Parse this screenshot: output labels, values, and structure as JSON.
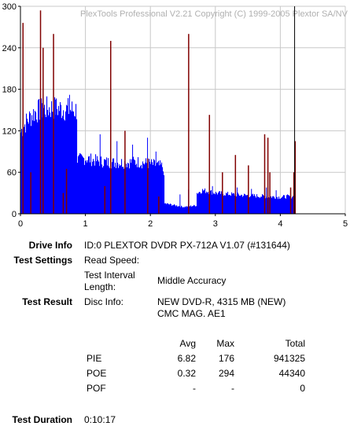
{
  "chart_data": {
    "type": "bar",
    "watermark": "PlexTools Professional V2.21 Copyright (C) 1999-2005 Plextor SA/NV",
    "xlim": [
      0,
      5
    ],
    "ylim": [
      0,
      300
    ],
    "xticks": [
      "0",
      "1",
      "2",
      "3",
      "4",
      "5"
    ],
    "yticks": [
      "0",
      "60",
      "120",
      "180",
      "240",
      "300"
    ],
    "grid": true,
    "series": [
      {
        "kind": "PIE",
        "color": "#0000ff",
        "profile_x": [
          0.0,
          0.02,
          0.1,
          0.2,
          0.3,
          0.4,
          0.5,
          0.6,
          0.7,
          0.8,
          0.86,
          0.87,
          1.0,
          1.2,
          1.4,
          1.6,
          1.8,
          2.0,
          2.1,
          2.2,
          2.21,
          2.5,
          2.7,
          2.71,
          2.8,
          3.0,
          3.4,
          3.8,
          4.0,
          4.1,
          4.2
        ],
        "profile_y": [
          118,
          123,
          135,
          146,
          150,
          152,
          153,
          152,
          151,
          150,
          150,
          78,
          80,
          76,
          74,
          74,
          75,
          72,
          70,
          68,
          15,
          10,
          12,
          30,
          34,
          30,
          27,
          25,
          24,
          25,
          25
        ],
        "spikes_x": [
          0.33,
          0.53,
          0.75,
          1.22,
          1.48,
          1.72,
          1.95,
          2.08,
          2.45,
          2.58,
          2.95,
          3.33,
          3.55,
          3.78,
          3.93
        ],
        "spikes_y": [
          160,
          165,
          172,
          115,
          105,
          100,
          110,
          90,
          28,
          35,
          40,
          38,
          36,
          38,
          34
        ]
      },
      {
        "kind": "POE",
        "color": "#800000",
        "x": [
          0.03,
          0.15,
          0.3,
          0.34,
          0.5,
          0.65,
          0.7,
          1.29,
          1.38,
          1.6,
          1.95,
          2.12,
          2.58,
          2.9,
          3.1,
          3.3,
          3.5,
          3.75,
          3.8,
          3.83,
          4.15,
          4.2,
          4.22
        ],
        "y": [
          276,
          60,
          294,
          240,
          260,
          30,
          65,
          40,
          250,
          120,
          80,
          25,
          260,
          143,
          60,
          85,
          70,
          115,
          110,
          60,
          38,
          60,
          105
        ]
      }
    ],
    "end_marker_x": 4.22
  },
  "info": {
    "drive_info_label": "Drive Info",
    "drive_info_value": "ID:0 PLEXTOR DVDR PX-712A V1.07 (#131644)",
    "test_settings_label": "Test Settings",
    "read_speed_label": "Read Speed:",
    "interval_label_1": "Test Interval",
    "interval_label_2": "Length:",
    "interval_value": "Middle Accuracy",
    "test_result_label": "Test Result",
    "disc_info_label": "Disc Info:",
    "disc_info_1": "NEW DVD-R, 4315 MB (NEW)",
    "disc_info_2": "CMC MAG. AE1",
    "col_avg": "Avg",
    "col_max": "Max",
    "col_total": "Total",
    "rows": [
      {
        "name": "PIE",
        "avg": "6.82",
        "max": "176",
        "total": "941325"
      },
      {
        "name": "POE",
        "avg": "0.32",
        "max": "294",
        "total": "44340"
      },
      {
        "name": "POF",
        "avg": "-",
        "max": "-",
        "total": "0"
      }
    ],
    "duration_label": "Test Duration",
    "duration_value": "0:10:17"
  }
}
